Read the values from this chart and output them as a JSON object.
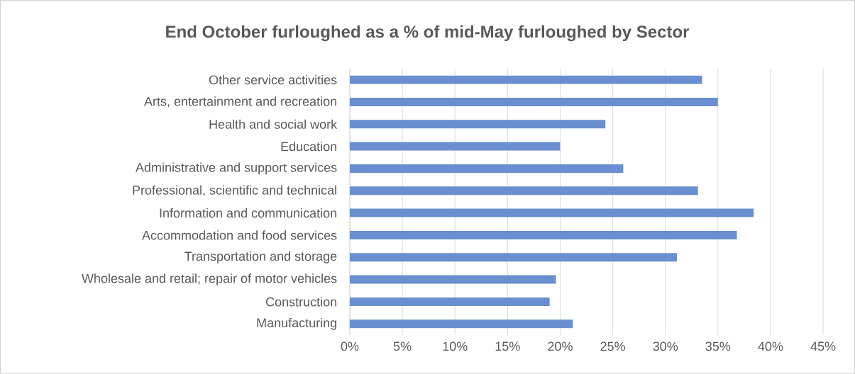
{
  "chart_data": {
    "type": "bar",
    "orientation": "horizontal",
    "title": "End October furloughed as a % of mid-May furloughed by Sector",
    "categories": [
      "Other service activities",
      "Arts, entertainment and recreation",
      "Health and social work",
      "Education",
      "Administrative and support services",
      "Professional, scientific and technical",
      "Information and communication",
      "Accommodation and food services",
      "Transportation and storage",
      "Wholesale and retail; repair of motor vehicles",
      "Construction",
      "Manufacturing"
    ],
    "values": [
      33.5,
      35.0,
      24.3,
      20.0,
      26.0,
      33.1,
      38.4,
      36.8,
      31.1,
      19.6,
      19.0,
      21.2
    ],
    "color": "#6a8fd0",
    "grid": "x",
    "xlim": [
      0,
      45
    ],
    "xticks": [
      {
        "value": 0,
        "label": "0%"
      },
      {
        "value": 5,
        "label": "5%"
      },
      {
        "value": 10,
        "label": "10%"
      },
      {
        "value": 15,
        "label": "15%"
      },
      {
        "value": 20,
        "label": "20%"
      },
      {
        "value": 25,
        "label": "25%"
      },
      {
        "value": 30,
        "label": "30%"
      },
      {
        "value": 35,
        "label": "35%"
      },
      {
        "value": 40,
        "label": "40%"
      },
      {
        "value": 45,
        "label": "45%"
      }
    ]
  }
}
